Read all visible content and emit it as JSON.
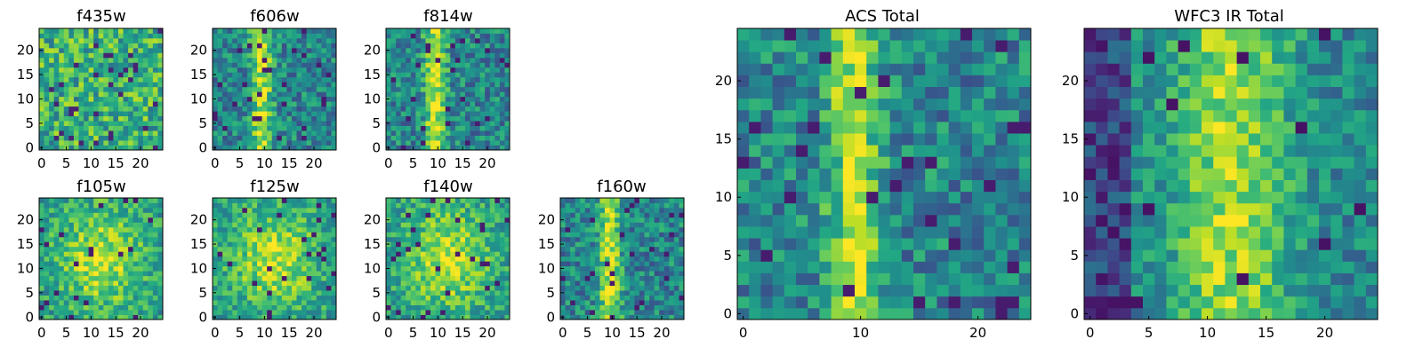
{
  "chart_data": {
    "type": "heatmap",
    "colormap": "viridis",
    "panels": [
      {
        "title": "f435w",
        "size": 25,
        "xticks": [
          0,
          5,
          10,
          15,
          20
        ],
        "yticks": [
          0,
          5,
          10,
          15,
          20
        ],
        "pattern": "noise",
        "seed": 11
      },
      {
        "title": "f606w",
        "size": 25,
        "xticks": [
          0,
          5,
          10,
          15,
          20
        ],
        "yticks": [
          0,
          5,
          10,
          15,
          20
        ],
        "pattern": "stripe",
        "seed": 23
      },
      {
        "title": "f814w",
        "size": 25,
        "xticks": [
          0,
          5,
          10,
          15,
          20
        ],
        "yticks": [
          0,
          5,
          10,
          15,
          20
        ],
        "pattern": "stripe",
        "seed": 37
      },
      {
        "title": "f105w",
        "size": 25,
        "xticks": [
          0,
          5,
          10,
          15,
          20
        ],
        "yticks": [
          0,
          5,
          10,
          15,
          20
        ],
        "pattern": "blob",
        "seed": 41
      },
      {
        "title": "f125w",
        "size": 25,
        "xticks": [
          0,
          5,
          10,
          15,
          20
        ],
        "yticks": [
          0,
          5,
          10,
          15,
          20
        ],
        "pattern": "blob",
        "seed": 53
      },
      {
        "title": "f140w",
        "size": 25,
        "xticks": [
          0,
          5,
          10,
          15,
          20
        ],
        "yticks": [
          0,
          5,
          10,
          15,
          20
        ],
        "pattern": "blob",
        "seed": 67
      },
      {
        "title": "f160w",
        "size": 25,
        "xticks": [
          0,
          5,
          10,
          15,
          20
        ],
        "yticks": [
          0,
          5,
          10,
          15,
          20
        ],
        "pattern": "stripe",
        "seed": 71
      },
      {
        "title": "ACS Total",
        "size": 25,
        "xticks": [
          0,
          10,
          20
        ],
        "yticks": [
          0,
          5,
          10,
          15,
          20
        ],
        "pattern": "stripe",
        "seed": 83
      },
      {
        "title": "WFC3 IR Total",
        "size": 25,
        "xticks": [
          0,
          5,
          10,
          15,
          20
        ],
        "yticks": [
          0,
          5,
          10,
          15,
          20
        ],
        "pattern": "irtotal",
        "seed": 97
      }
    ]
  }
}
